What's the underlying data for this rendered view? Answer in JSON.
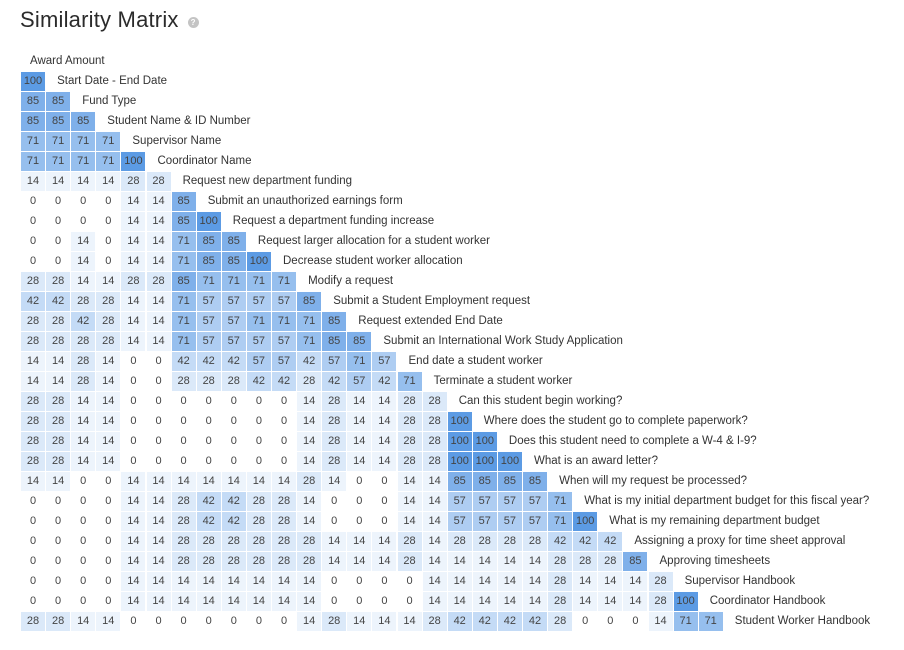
{
  "title": "Similarity Matrix",
  "icons": {
    "help": "help-circle-icon"
  },
  "colors": {
    "0": "#ffffff",
    "14": "#edf4fc",
    "28": "#dbe9f9",
    "42": "#c4dbf6",
    "57": "#aecdf2",
    "71": "#96bfee",
    "85": "#7fb0ea",
    "100": "#5c9be4"
  },
  "chart_data": {
    "type": "heatmap",
    "title": "Similarity Matrix",
    "first_label": "Award Amount",
    "labels": [
      "Start Date - End Date",
      "Fund Type",
      "Student Name & ID Number",
      "Supervisor Name",
      "Coordinator Name",
      "Request new department funding",
      "Submit an unauthorized earnings form",
      "Request a department funding increase",
      "Request larger allocation for a student worker",
      "Decrease student worker allocation",
      "Modify a request",
      "Submit a Student Employment request",
      "Request extended End Date",
      "Submit an International Work Study Application",
      "End date a student worker",
      "Terminate a student worker",
      "Can this student begin working?",
      "Where does the student go to complete paperwork?",
      "Does this student need to complete a W-4 & I-9?",
      "What is an award letter?",
      "When will my request be processed?",
      "What is my initial department budget for this fiscal year?",
      "What is my remaining department budget",
      "Assigning a proxy for time sheet approval",
      "Approving timesheets",
      "Supervisor Handbook",
      "Coordinator Handbook",
      "Student Worker Handbook"
    ],
    "rows": [
      [
        100
      ],
      [
        85,
        85
      ],
      [
        85,
        85,
        85
      ],
      [
        71,
        71,
        71,
        71
      ],
      [
        71,
        71,
        71,
        71,
        100
      ],
      [
        14,
        14,
        14,
        14,
        28,
        28
      ],
      [
        0,
        0,
        0,
        0,
        14,
        14,
        85
      ],
      [
        0,
        0,
        0,
        0,
        14,
        14,
        85,
        100
      ],
      [
        0,
        0,
        14,
        0,
        14,
        14,
        71,
        85,
        85
      ],
      [
        0,
        0,
        14,
        0,
        14,
        14,
        71,
        85,
        85,
        100
      ],
      [
        28,
        28,
        14,
        14,
        28,
        28,
        85,
        71,
        71,
        71,
        71
      ],
      [
        42,
        42,
        28,
        28,
        14,
        14,
        71,
        57,
        57,
        57,
        57,
        85
      ],
      [
        28,
        28,
        42,
        28,
        14,
        14,
        71,
        57,
        57,
        71,
        71,
        71,
        85
      ],
      [
        28,
        28,
        28,
        28,
        14,
        14,
        71,
        57,
        57,
        57,
        57,
        71,
        85,
        85
      ],
      [
        14,
        14,
        28,
        14,
        0,
        0,
        42,
        42,
        42,
        57,
        57,
        42,
        57,
        71,
        57
      ],
      [
        14,
        14,
        28,
        14,
        0,
        0,
        28,
        28,
        28,
        42,
        42,
        28,
        42,
        57,
        42,
        71
      ],
      [
        28,
        28,
        14,
        14,
        0,
        0,
        0,
        0,
        0,
        0,
        0,
        14,
        28,
        14,
        14,
        28,
        28
      ],
      [
        28,
        28,
        14,
        14,
        0,
        0,
        0,
        0,
        0,
        0,
        0,
        14,
        28,
        14,
        14,
        28,
        28,
        100
      ],
      [
        28,
        28,
        14,
        14,
        0,
        0,
        0,
        0,
        0,
        0,
        0,
        14,
        28,
        14,
        14,
        28,
        28,
        100,
        100
      ],
      [
        28,
        28,
        14,
        14,
        0,
        0,
        0,
        0,
        0,
        0,
        0,
        14,
        28,
        14,
        14,
        28,
        28,
        100,
        100,
        100
      ],
      [
        14,
        14,
        0,
        0,
        14,
        14,
        14,
        14,
        14,
        14,
        14,
        28,
        14,
        0,
        0,
        14,
        14,
        85,
        85,
        85,
        85
      ],
      [
        0,
        0,
        0,
        0,
        14,
        14,
        28,
        42,
        42,
        28,
        28,
        14,
        0,
        0,
        0,
        14,
        14,
        57,
        57,
        57,
        57,
        71
      ],
      [
        0,
        0,
        0,
        0,
        14,
        14,
        28,
        42,
        42,
        28,
        28,
        14,
        0,
        0,
        0,
        14,
        14,
        57,
        57,
        57,
        57,
        71,
        100
      ],
      [
        0,
        0,
        0,
        0,
        14,
        14,
        28,
        28,
        28,
        28,
        28,
        28,
        14,
        14,
        14,
        28,
        14,
        28,
        28,
        28,
        28,
        42,
        42,
        42
      ],
      [
        0,
        0,
        0,
        0,
        14,
        14,
        28,
        28,
        28,
        28,
        28,
        28,
        14,
        14,
        14,
        28,
        14,
        14,
        14,
        14,
        14,
        28,
        28,
        28,
        85
      ],
      [
        0,
        0,
        0,
        0,
        14,
        14,
        14,
        14,
        14,
        14,
        14,
        14,
        0,
        0,
        0,
        0,
        14,
        14,
        14,
        14,
        14,
        28,
        14,
        14,
        14,
        28
      ],
      [
        0,
        0,
        0,
        0,
        14,
        14,
        14,
        14,
        14,
        14,
        14,
        14,
        0,
        0,
        0,
        0,
        14,
        14,
        14,
        14,
        14,
        28,
        14,
        14,
        14,
        28,
        100
      ],
      [
        28,
        28,
        14,
        14,
        0,
        0,
        0,
        0,
        0,
        0,
        0,
        14,
        28,
        14,
        14,
        14,
        28,
        42,
        42,
        42,
        42,
        28,
        0,
        0,
        0,
        14,
        71,
        71
      ]
    ]
  }
}
